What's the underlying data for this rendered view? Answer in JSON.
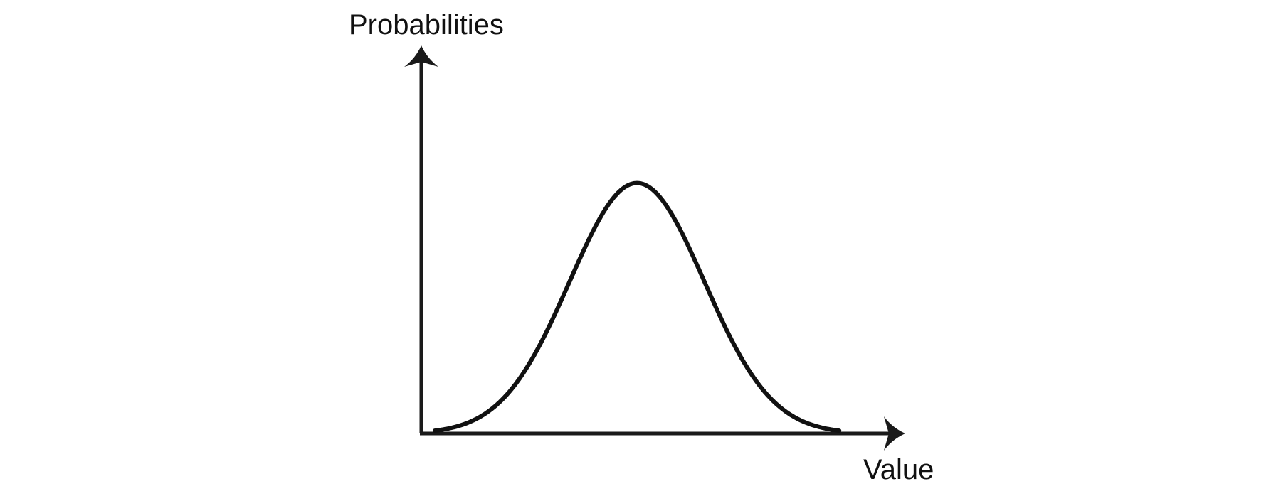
{
  "chart_data": {
    "type": "line",
    "title": "",
    "xlabel": "Value",
    "ylabel": "Probabilities",
    "grid": false,
    "legend": "none",
    "ticks": false,
    "series": [
      {
        "kind": "normal-distribution-curve",
        "mean": 0,
        "std": 1,
        "x": [
          -3,
          -2.75,
          -2.5,
          -2.25,
          -2,
          -1.75,
          -1.5,
          -1.25,
          -1,
          -0.75,
          -0.5,
          -0.25,
          0,
          0.25,
          0.5,
          0.75,
          1,
          1.25,
          1.5,
          1.75,
          2,
          2.25,
          2.5,
          2.75,
          3
        ],
        "y": [
          0.0044,
          0.0091,
          0.0175,
          0.0317,
          0.054,
          0.0863,
          0.1295,
          0.1826,
          0.242,
          0.3011,
          0.3521,
          0.3867,
          0.3989,
          0.3867,
          0.3521,
          0.3011,
          0.242,
          0.1826,
          0.1295,
          0.0863,
          0.054,
          0.0317,
          0.0175,
          0.0091,
          0.0044
        ]
      }
    ],
    "xlim": [
      -3.2,
      3.8
    ],
    "ylim": [
      0,
      0.6
    ],
    "colors": {
      "line": "#111111",
      "axis": "#1a1a1a"
    }
  }
}
